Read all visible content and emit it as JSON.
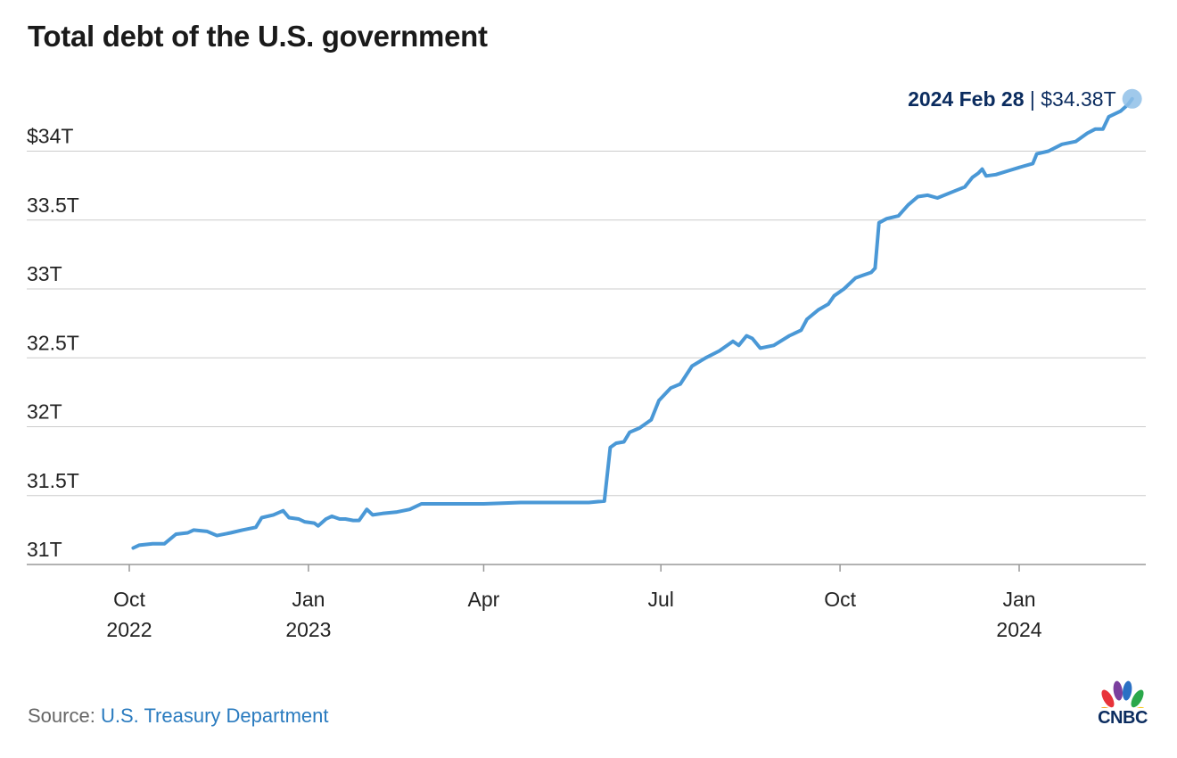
{
  "title": "Total debt of the U.S. government",
  "source": {
    "prefix": "Source: ",
    "name": "U.S. Treasury Department"
  },
  "brand": {
    "name": "CNBC",
    "icon": "peacock-logo-icon",
    "text_color": "#0b2c5f"
  },
  "colors": {
    "line": "#4a98d6",
    "grid": "#cccccc",
    "annotation": "#0b2c5f",
    "marker": "#8fc0e8"
  },
  "chart_data": {
    "type": "line",
    "title": "Total debt of the U.S. government",
    "xlabel": "",
    "ylabel": "",
    "ylim": [
      31,
      34.45
    ],
    "y_ticks": [
      {
        "value": 31,
        "label": "31T"
      },
      {
        "value": 31.5,
        "label": "31.5T"
      },
      {
        "value": 32,
        "label": "32T"
      },
      {
        "value": 32.5,
        "label": "32.5T"
      },
      {
        "value": 33,
        "label": "33T"
      },
      {
        "value": 33.5,
        "label": "33.5T"
      },
      {
        "value": 34,
        "label": "$34T"
      }
    ],
    "x_ticks": [
      {
        "date": "2022-10-01",
        "label": "Oct",
        "sublabel": "2022"
      },
      {
        "date": "2023-01-01",
        "label": "Jan",
        "sublabel": "2023"
      },
      {
        "date": "2023-04-01",
        "label": "Apr",
        "sublabel": ""
      },
      {
        "date": "2023-07-01",
        "label": "Jul",
        "sublabel": ""
      },
      {
        "date": "2023-10-01",
        "label": "Oct",
        "sublabel": ""
      },
      {
        "date": "2024-01-01",
        "label": "Jan",
        "sublabel": "2024"
      }
    ],
    "grid": true,
    "series": [
      {
        "values": [
          [
            "2022-10-03",
            31.12
          ],
          [
            "2022-10-06",
            31.14
          ],
          [
            "2022-10-13",
            31.15
          ],
          [
            "2022-10-19",
            31.15
          ],
          [
            "2022-10-25",
            31.22
          ],
          [
            "2022-10-31",
            31.23
          ],
          [
            "2022-11-03",
            31.25
          ],
          [
            "2022-11-10",
            31.24
          ],
          [
            "2022-11-15",
            31.21
          ],
          [
            "2022-11-22",
            31.23
          ],
          [
            "2022-11-28",
            31.25
          ],
          [
            "2022-12-05",
            31.27
          ],
          [
            "2022-12-08",
            31.34
          ],
          [
            "2022-12-14",
            31.36
          ],
          [
            "2022-12-19",
            31.39
          ],
          [
            "2022-12-22",
            31.34
          ],
          [
            "2022-12-27",
            31.33
          ],
          [
            "2022-12-30",
            31.31
          ],
          [
            "2023-01-04",
            31.3
          ],
          [
            "2023-01-06",
            31.28
          ],
          [
            "2023-01-10",
            31.33
          ],
          [
            "2023-01-13",
            31.35
          ],
          [
            "2023-01-17",
            31.33
          ],
          [
            "2023-01-20",
            31.33
          ],
          [
            "2023-01-24",
            31.32
          ],
          [
            "2023-01-27",
            31.32
          ],
          [
            "2023-01-31",
            31.4
          ],
          [
            "2023-02-03",
            31.36
          ],
          [
            "2023-02-08",
            31.37
          ],
          [
            "2023-02-15",
            31.38
          ],
          [
            "2023-02-22",
            31.4
          ],
          [
            "2023-02-28",
            31.44
          ],
          [
            "2023-03-15",
            31.44
          ],
          [
            "2023-04-01",
            31.44
          ],
          [
            "2023-04-20",
            31.45
          ],
          [
            "2023-05-10",
            31.45
          ],
          [
            "2023-05-25",
            31.45
          ],
          [
            "2023-06-02",
            31.46
          ],
          [
            "2023-06-05",
            31.85
          ],
          [
            "2023-06-08",
            31.88
          ],
          [
            "2023-06-12",
            31.89
          ],
          [
            "2023-06-15",
            31.96
          ],
          [
            "2023-06-20",
            31.99
          ],
          [
            "2023-06-26",
            32.05
          ],
          [
            "2023-06-30",
            32.19
          ],
          [
            "2023-07-06",
            32.28
          ],
          [
            "2023-07-11",
            32.31
          ],
          [
            "2023-07-17",
            32.44
          ],
          [
            "2023-07-24",
            32.5
          ],
          [
            "2023-07-31",
            32.55
          ],
          [
            "2023-08-07",
            32.62
          ],
          [
            "2023-08-10",
            32.59
          ],
          [
            "2023-08-14",
            32.66
          ],
          [
            "2023-08-17",
            32.64
          ],
          [
            "2023-08-21",
            32.57
          ],
          [
            "2023-08-28",
            32.59
          ],
          [
            "2023-09-05",
            32.66
          ],
          [
            "2023-09-11",
            32.7
          ],
          [
            "2023-09-14",
            32.78
          ],
          [
            "2023-09-20",
            32.85
          ],
          [
            "2023-09-25",
            32.89
          ],
          [
            "2023-09-28",
            32.95
          ],
          [
            "2023-10-03",
            33.0
          ],
          [
            "2023-10-09",
            33.08
          ],
          [
            "2023-10-13",
            33.1
          ],
          [
            "2023-10-17",
            33.12
          ],
          [
            "2023-10-19",
            33.15
          ],
          [
            "2023-10-21",
            33.48
          ],
          [
            "2023-10-25",
            33.51
          ],
          [
            "2023-10-31",
            33.53
          ],
          [
            "2023-11-05",
            33.61
          ],
          [
            "2023-11-10",
            33.67
          ],
          [
            "2023-11-15",
            33.68
          ],
          [
            "2023-11-20",
            33.66
          ],
          [
            "2023-11-27",
            33.7
          ],
          [
            "2023-12-04",
            33.74
          ],
          [
            "2023-12-08",
            33.81
          ],
          [
            "2023-12-11",
            33.84
          ],
          [
            "2023-12-13",
            33.87
          ],
          [
            "2023-12-15",
            33.82
          ],
          [
            "2023-12-20",
            33.83
          ],
          [
            "2023-12-27",
            33.86
          ],
          [
            "2024-01-03",
            33.89
          ],
          [
            "2024-01-08",
            33.91
          ],
          [
            "2024-01-10",
            33.98
          ],
          [
            "2024-01-16",
            34.0
          ],
          [
            "2024-01-23",
            34.05
          ],
          [
            "2024-01-30",
            34.07
          ],
          [
            "2024-02-05",
            34.13
          ],
          [
            "2024-02-09",
            34.16
          ],
          [
            "2024-02-13",
            34.16
          ],
          [
            "2024-02-16",
            34.25
          ],
          [
            "2024-02-22",
            34.29
          ],
          [
            "2024-02-26",
            34.34
          ],
          [
            "2024-02-28",
            34.38
          ]
        ]
      }
    ],
    "annotation": {
      "date_label": "2024 Feb 28",
      "separator": "|",
      "value_label": "$34.38T",
      "date": "2024-02-28",
      "value": 34.38
    }
  }
}
